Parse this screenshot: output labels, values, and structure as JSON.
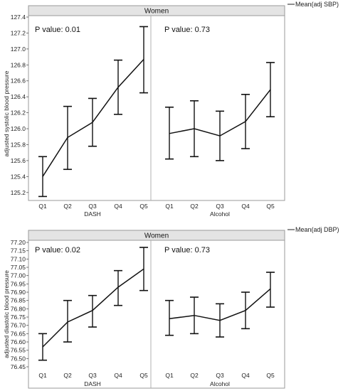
{
  "chart_data": [
    {
      "type": "line",
      "header": "Women",
      "legend": "Mean(adj SBP)",
      "ylabel": "adjusted systolic blood pressure",
      "ylim": [
        125.1,
        127.4
      ],
      "yticks": [
        "125.2",
        "125.4",
        "125.6",
        "125.8",
        "126.0",
        "126.2",
        "126.4",
        "126.6",
        "126.8",
        "127.0",
        "127.2",
        "127.4"
      ],
      "groups": [
        {
          "name": "DASH",
          "p_value": "P value: 0.01",
          "categories": [
            "Q1",
            "Q2",
            "Q3",
            "Q4",
            "Q5"
          ],
          "mean": [
            125.4,
            125.89,
            126.08,
            126.52,
            126.87
          ],
          "lower": [
            125.15,
            125.49,
            125.78,
            126.18,
            126.45
          ],
          "upper": [
            125.65,
            126.28,
            126.38,
            126.86,
            127.28
          ]
        },
        {
          "name": "Alcohol",
          "p_value": "P value: 0.73",
          "categories": [
            "Q1",
            "Q2",
            "Q3",
            "Q4",
            "Q5"
          ],
          "mean": [
            125.94,
            126.0,
            125.91,
            126.09,
            126.49
          ],
          "lower": [
            125.62,
            125.65,
            125.6,
            125.75,
            126.15
          ],
          "upper": [
            126.27,
            126.35,
            126.22,
            126.43,
            126.83
          ]
        }
      ]
    },
    {
      "type": "line",
      "header": "Women",
      "legend": "Mean(adj DBP)",
      "ylabel": "adjusted diastolic blood pressure",
      "ylim": [
        76.45,
        77.2
      ],
      "yticks": [
        "76.45",
        "76.50",
        "76.55",
        "76.60",
        "76.65",
        "76.70",
        "76.75",
        "76.80",
        "76.85",
        "76.90",
        "76.95",
        "77.00",
        "77.05",
        "77.10",
        "77.15",
        "77.20"
      ],
      "groups": [
        {
          "name": "DASH",
          "p_value": "P value: 0.02",
          "categories": [
            "Q1",
            "Q2",
            "Q3",
            "Q4",
            "Q5"
          ],
          "mean": [
            76.57,
            76.72,
            76.79,
            76.93,
            77.04
          ],
          "lower": [
            76.49,
            76.6,
            76.69,
            76.82,
            76.91
          ],
          "upper": [
            76.65,
            76.85,
            76.88,
            77.03,
            77.17
          ]
        },
        {
          "name": "Alcohol",
          "p_value": "P value: 0.73",
          "categories": [
            "Q1",
            "Q2",
            "Q3",
            "Q4",
            "Q5"
          ],
          "mean": [
            76.74,
            76.76,
            76.73,
            76.79,
            76.92
          ],
          "lower": [
            76.64,
            76.65,
            76.63,
            76.68,
            76.81
          ],
          "upper": [
            76.85,
            76.87,
            76.83,
            76.9,
            77.02
          ]
        }
      ]
    }
  ]
}
